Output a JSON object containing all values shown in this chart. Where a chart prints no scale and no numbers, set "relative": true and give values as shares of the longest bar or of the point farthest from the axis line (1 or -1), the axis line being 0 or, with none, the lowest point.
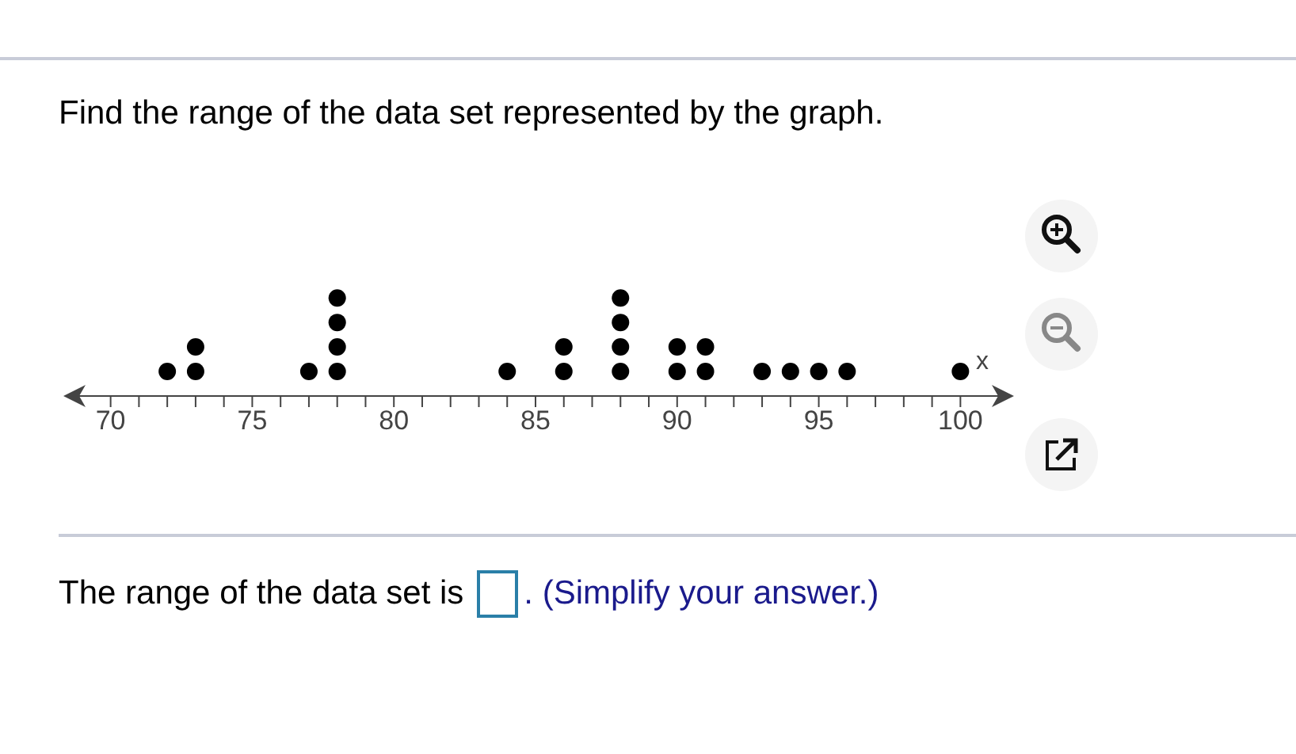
{
  "chart_data": {
    "type": "scatter",
    "title": "Find the range of the data set represented by the graph.",
    "xlabel": "x",
    "relative": true,
    "x": [
      72,
      73,
      73,
      77,
      78,
      78,
      78,
      78,
      84,
      86,
      86,
      88,
      88,
      88,
      88,
      90,
      90,
      91,
      91,
      93,
      94,
      95,
      96,
      100
    ],
    "values": [
      0.25,
      0.25,
      0.5,
      0.25,
      0.25,
      0.5,
      0.75,
      1,
      0.25,
      0.25,
      0.5,
      0.25,
      0.5,
      0.75,
      1,
      0.25,
      0.5,
      0.25,
      0.5,
      0.25,
      0.25,
      0.25,
      0.25,
      0.25
    ],
    "color": "#000000",
    "marker": "circle",
    "grid": false,
    "tick_labels": "x",
    "xlim": [
      68.5,
      101.5
    ],
    "xticks": [
      70,
      {
        "value": 71,
        "label": null
      },
      {
        "value": 72,
        "label": null
      },
      {
        "value": 73,
        "label": null
      },
      {
        "value": 74,
        "label": null
      },
      75,
      {
        "value": 76,
        "label": null
      },
      {
        "value": 77,
        "label": null
      },
      {
        "value": 78,
        "label": null
      },
      {
        "value": 79,
        "label": null
      },
      80,
      {
        "value": 81,
        "label": null
      },
      {
        "value": 82,
        "label": null
      },
      {
        "value": 83,
        "label": null
      },
      {
        "value": 84,
        "label": null
      },
      85,
      {
        "value": 86,
        "label": null
      },
      {
        "value": 87,
        "label": null
      },
      {
        "value": 88,
        "label": null
      },
      {
        "value": 89,
        "label": null
      },
      90,
      {
        "value": 91,
        "label": null
      },
      {
        "value": 92,
        "label": null
      },
      {
        "value": 93,
        "label": null
      },
      {
        "value": 94,
        "label": null
      },
      95,
      {
        "value": 96,
        "label": null
      },
      {
        "value": 97,
        "label": null
      },
      {
        "value": 98,
        "label": null
      },
      {
        "value": 99,
        "label": null
      },
      100
    ],
    "annotations": [
      "The range of the data set is",
      ". (Simplify your answer.)"
    ]
  }
}
